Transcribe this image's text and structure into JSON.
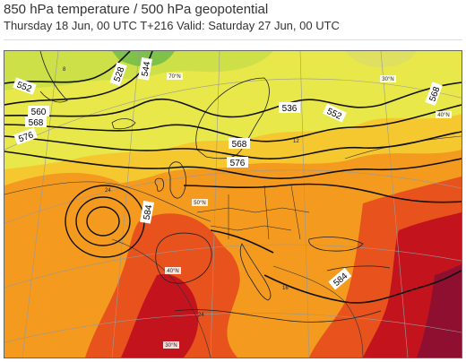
{
  "header": {
    "title": "850 hPa temperature / 500 hPa geopotential",
    "subtitle": "Thursday 18 Jun, 00 UTC T+216 Valid: Saturday 27 Jun, 00 UTC"
  },
  "map": {
    "geopotential_labels": [
      "552",
      "560",
      "568",
      "576",
      "528",
      "544",
      "536",
      "552",
      "568",
      "576",
      "584",
      "568",
      "584"
    ],
    "latitude_labels": [
      "70°N",
      "50°N",
      "40°N",
      "30°N",
      "30°N",
      "40°N"
    ],
    "isotherm_labels": [
      "24",
      "24",
      "16",
      "12",
      "8"
    ],
    "colors": {
      "cold": "#7ec24a",
      "cool": "#e8e84a",
      "mild": "#f6c830",
      "warm": "#f39a1f",
      "hot": "#e8521c",
      "very_hot": "#c3141e",
      "extreme": "#8e0f2f"
    }
  }
}
